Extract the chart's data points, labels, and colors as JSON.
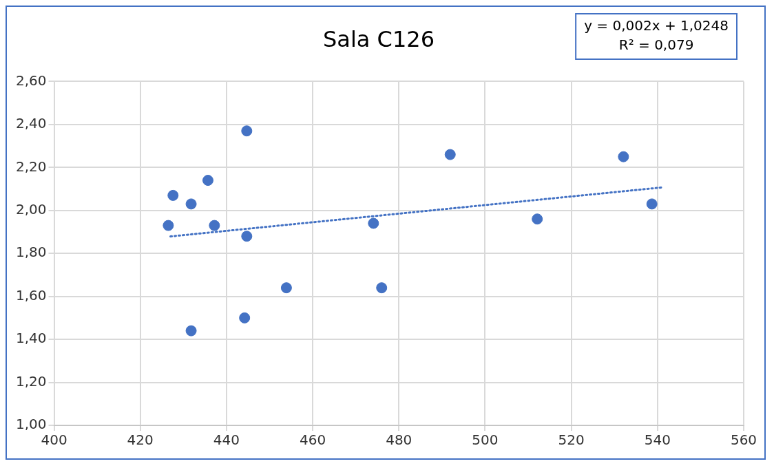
{
  "chart_data": {
    "type": "scatter",
    "title": "Sala C126",
    "annotations": [
      "y = 0,002x + 1,0248",
      "R² = 0,079"
    ],
    "series": [
      {
        "color": "#4472c4",
        "marker": "circle",
        "x": [
          426.5,
          427.6,
          431.8,
          435.7,
          437.2,
          444.7,
          444.7,
          444.2,
          431.8,
          453.9,
          474.1,
          476,
          491.9,
          512.1,
          532.1,
          538.7
        ],
        "values": [
          1.93,
          2.07,
          2.03,
          2.14,
          1.93,
          2.37,
          1.88,
          1.5,
          1.44,
          1.64,
          1.94,
          1.64,
          2.26,
          1.96,
          2.25,
          2.03
        ]
      },
      {
        "type": "line",
        "color": "#4472c4",
        "line_style": "dotted",
        "marker": "none",
        "x": [
          427,
          541
        ],
        "values": [
          1.879,
          2.107
        ]
      }
    ],
    "xlim": [
      400,
      560
    ],
    "xticks": [
      400,
      420,
      440,
      460,
      480,
      500,
      520,
      540,
      560
    ],
    "ylim": [
      1,
      2.6
    ],
    "yticks": [
      {
        "value": 1,
        "label": "1,00"
      },
      {
        "value": 1.2,
        "label": "1,20"
      },
      {
        "value": 1.4,
        "label": "1,40"
      },
      {
        "value": 1.6,
        "label": "1,60"
      },
      {
        "value": 1.8,
        "label": "1,80"
      },
      {
        "value": 2,
        "label": "2,00"
      },
      {
        "value": 2.2,
        "label": "2,20"
      },
      {
        "value": 2.4,
        "label": "2,40"
      },
      {
        "value": 2.6,
        "label": "2,60"
      }
    ],
    "grid": true,
    "legend": false
  }
}
